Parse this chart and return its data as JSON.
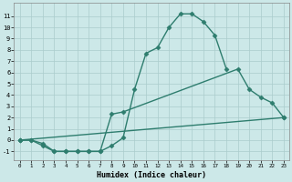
{
  "title": "",
  "xlabel": "Humidex (Indice chaleur)",
  "bg_color": "#cce8e8",
  "grid_color": "#aacccc",
  "line_color": "#2e7d6e",
  "xlim": [
    -0.5,
    23.5
  ],
  "ylim": [
    -1.8,
    12.2
  ],
  "xticks": [
    0,
    1,
    2,
    3,
    4,
    5,
    6,
    7,
    8,
    9,
    10,
    11,
    12,
    13,
    14,
    15,
    16,
    17,
    18,
    19,
    20,
    21,
    22,
    23
  ],
  "yticks": [
    -1,
    0,
    1,
    2,
    3,
    4,
    5,
    6,
    7,
    8,
    9,
    10,
    11
  ],
  "line1_x": [
    0,
    1,
    2,
    3,
    4,
    5,
    6,
    7,
    8,
    9,
    10,
    11,
    12,
    13,
    14,
    15,
    16,
    17,
    18
  ],
  "line1_y": [
    0,
    0,
    -0.5,
    -1,
    -1,
    -1,
    -1,
    -1,
    -0.5,
    0.2,
    4.5,
    7.7,
    8.2,
    10,
    11.2,
    11.2,
    10.5,
    9.3,
    6.3
  ],
  "line2_x": [
    0,
    1,
    2,
    3,
    4,
    5,
    6,
    7,
    8,
    9,
    19,
    20,
    21,
    22,
    23
  ],
  "line2_y": [
    0,
    0,
    -0.3,
    -1,
    -1,
    -1,
    -1,
    -1,
    2.3,
    2.5,
    6.3,
    4.5,
    3.8,
    3.3,
    2.0
  ],
  "line3_x": [
    0,
    23
  ],
  "line3_y": [
    0,
    2.0
  ],
  "marker": "D",
  "markersize": 2.5,
  "linewidth": 1.0
}
